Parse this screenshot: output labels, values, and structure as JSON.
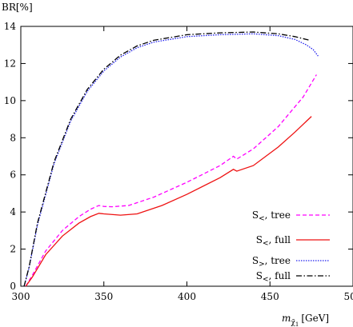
{
  "chart_data": {
    "type": "line",
    "ylabel": "BR[%]",
    "xlabel_main": "m",
    "xlabel_sub": "χ̃",
    "xlabel_subsub": "1",
    "xlabel_unit": "[GeV]",
    "xlim": [
      300,
      500
    ],
    "ylim": [
      0,
      14
    ],
    "xticks": [
      300,
      350,
      400,
      450,
      500
    ],
    "yticks": [
      0,
      2,
      4,
      6,
      8,
      10,
      12,
      14
    ],
    "grid": false,
    "legend_position": "bottom-right",
    "series": [
      {
        "name": "S<, tree",
        "label_main": "S",
        "label_sub": "<",
        "label_rest": ", tree",
        "color": "#ff00ff",
        "dash": "5,3",
        "x": [
          303,
          307,
          315,
          325,
          335,
          342,
          347,
          350,
          355,
          365,
          380,
          400,
          420,
          428,
          430,
          440,
          455,
          470,
          478
        ],
        "y": [
          0,
          0.6,
          1.9,
          3.0,
          3.75,
          4.15,
          4.35,
          4.3,
          4.28,
          4.35,
          4.8,
          5.6,
          6.5,
          7.0,
          6.85,
          7.4,
          8.6,
          10.2,
          11.4
        ]
      },
      {
        "name": "S<, full",
        "label_main": "S",
        "label_sub": "<",
        "label_rest": ", full",
        "color": "#ee1111",
        "dash": "",
        "x": [
          303,
          307,
          315,
          325,
          335,
          342,
          347,
          350,
          360,
          370,
          385,
          400,
          420,
          428,
          430,
          440,
          455,
          465,
          475
        ],
        "y": [
          0,
          0.5,
          1.7,
          2.7,
          3.4,
          3.75,
          3.93,
          3.9,
          3.83,
          3.9,
          4.35,
          4.95,
          5.85,
          6.3,
          6.2,
          6.5,
          7.5,
          8.3,
          9.15
        ]
      },
      {
        "name": "S>, tree",
        "label_main": "S",
        "label_sub": ">",
        "label_rest": ", tree",
        "color": "#2222ee",
        "dash": "1.5,1.5",
        "x": [
          302,
          305,
          310,
          320,
          330,
          340,
          350,
          360,
          370,
          380,
          400,
          420,
          440,
          455,
          465,
          472,
          476,
          479
        ],
        "y": [
          0,
          1.0,
          3.3,
          6.6,
          8.9,
          10.5,
          11.6,
          12.35,
          12.85,
          13.15,
          13.45,
          13.55,
          13.6,
          13.5,
          13.3,
          13.0,
          12.75,
          12.4
        ]
      },
      {
        "name": "S<, full",
        "label_main": "S",
        "label_sub": "<",
        "label_rest": ", full",
        "color": "#000000",
        "dash": "7,2.5,1.5,2.5",
        "x": [
          302,
          305,
          310,
          320,
          330,
          340,
          350,
          360,
          370,
          380,
          400,
          420,
          440,
          455,
          465,
          474
        ],
        "y": [
          0,
          1.05,
          3.4,
          6.7,
          9.0,
          10.6,
          11.7,
          12.45,
          12.95,
          13.25,
          13.55,
          13.65,
          13.7,
          13.6,
          13.45,
          13.25
        ]
      }
    ]
  }
}
